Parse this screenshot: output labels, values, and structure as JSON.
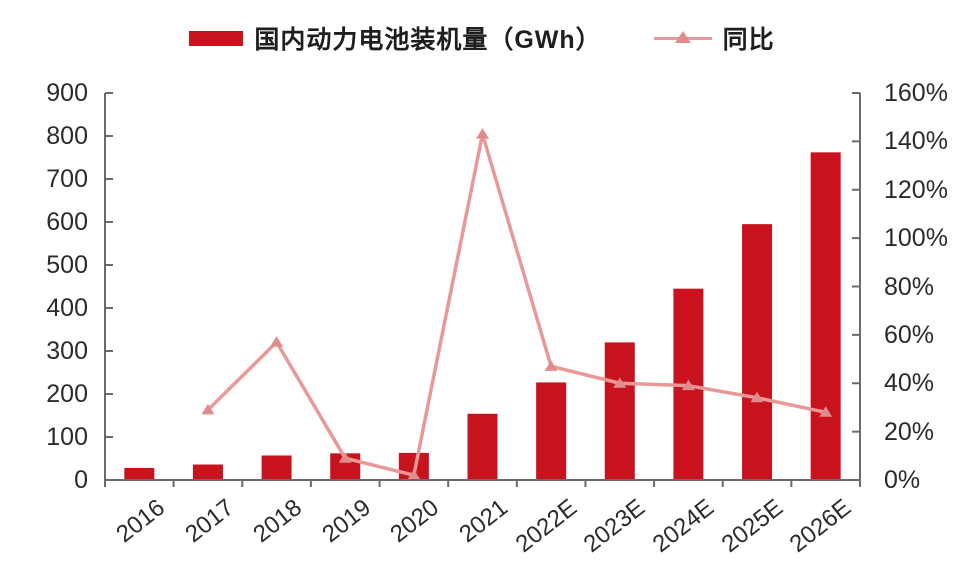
{
  "legend": {
    "items": [
      {
        "label": "国内动力电池装机量（GWh）",
        "swatch": "bar-swatch"
      },
      {
        "label": "同比",
        "swatch": "line-swatch"
      }
    ]
  },
  "colors": {
    "bar": "#C8131F",
    "line": "#E89896",
    "marker": "#E18C8C",
    "axis": "#6B6B6B",
    "tick_text": "#2B2B2B",
    "background": "#FFFFFF"
  },
  "chart_data": {
    "type": "bar",
    "subtype": "combo-bar-line-dual-axis",
    "title": "",
    "categories": [
      "2016",
      "2017",
      "2018",
      "2019",
      "2020",
      "2021",
      "2022E",
      "2023E",
      "2024E",
      "2025E",
      "2026E"
    ],
    "series": [
      {
        "name": "国内动力电池装机量（GWh）",
        "type": "bar",
        "yaxis": "left",
        "unit": "GWh",
        "values": [
          28,
          36,
          57,
          62,
          63,
          154,
          227,
          320,
          445,
          595,
          762
        ]
      },
      {
        "name": "同比",
        "type": "line",
        "yaxis": "right",
        "unit": "%",
        "values": [
          null,
          29,
          57,
          9,
          2,
          143,
          47,
          40,
          39,
          34,
          28
        ]
      }
    ],
    "left_axis": {
      "min": 0,
      "max": 900,
      "step": 100,
      "tick_labels": [
        "0",
        "100",
        "200",
        "300",
        "400",
        "500",
        "600",
        "700",
        "800",
        "900"
      ]
    },
    "right_axis": {
      "min": 0,
      "max": 160,
      "step": 20,
      "tick_labels": [
        "0%",
        "20%",
        "40%",
        "60%",
        "80%",
        "100%",
        "120%",
        "140%",
        "160%"
      ]
    },
    "grid": false,
    "legend_position": "top-center"
  }
}
